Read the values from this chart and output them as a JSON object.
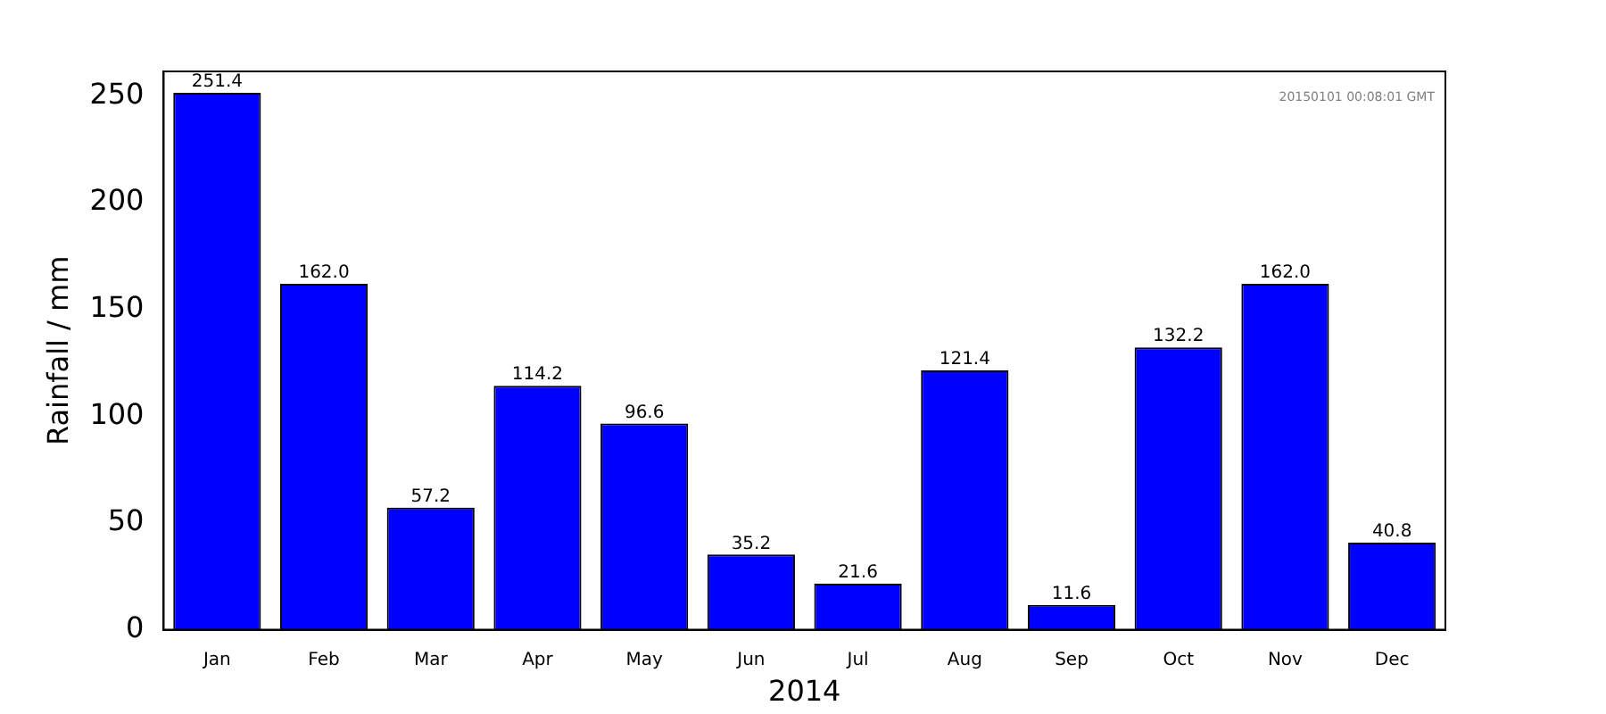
{
  "chart_data": {
    "type": "bar",
    "xlabel": "2014",
    "ylabel": "Rainfall / mm",
    "categories": [
      "Jan",
      "Feb",
      "Mar",
      "Apr",
      "May",
      "Jun",
      "Jul",
      "Aug",
      "Sep",
      "Oct",
      "Nov",
      "Dec"
    ],
    "values": [
      251.4,
      162.0,
      57.2,
      114.2,
      96.6,
      35.2,
      21.6,
      121.4,
      11.6,
      132.2,
      162.0,
      40.8
    ],
    "value_labels": [
      "251.4",
      "162.0",
      "57.2",
      "114.2",
      "96.6",
      "35.2",
      "21.6",
      "121.4",
      "11.6",
      "132.2",
      "162.0",
      "40.8"
    ],
    "color": "#0000ff",
    "ylim": [
      0,
      261.4
    ],
    "yticks": [
      0,
      50,
      100,
      150,
      200,
      250
    ],
    "grid": false,
    "legend": false,
    "annotations": [
      "20150101 00:08:01 GMT"
    ]
  }
}
